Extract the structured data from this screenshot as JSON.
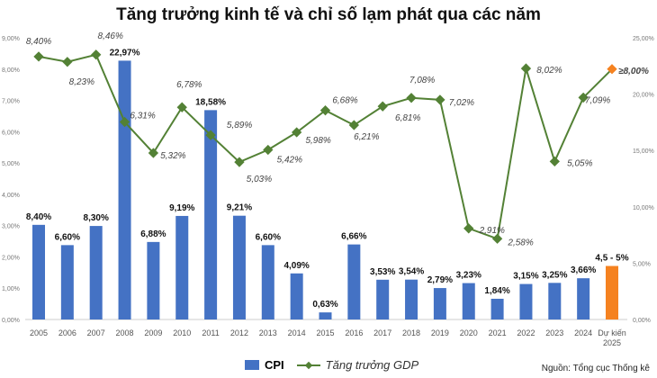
{
  "chart_data": {
    "type": "bar+line",
    "title": "Tăng trưởng kinh tế và chỉ số lạm phát qua các năm",
    "categories": [
      "2005",
      "2006",
      "2007",
      "2008",
      "2009",
      "2010",
      "2011",
      "2012",
      "2013",
      "2014",
      "2015",
      "2016",
      "2017",
      "2018",
      "2019",
      "2020",
      "2021",
      "2022",
      "2023",
      "2024",
      "Dự kiến 2025"
    ],
    "series": [
      {
        "name": "CPI",
        "type": "bar",
        "axis": "right",
        "color": "#4472C4",
        "forecast_color": "#F58220",
        "values": [
          8.4,
          6.6,
          8.3,
          22.97,
          6.88,
          9.19,
          18.58,
          9.21,
          6.6,
          4.09,
          0.63,
          6.66,
          3.53,
          3.54,
          2.79,
          3.23,
          1.84,
          3.15,
          3.25,
          3.66,
          4.75
        ],
        "labels": [
          "8,40%",
          "6,60%",
          "8,30%",
          "22,97%",
          "6,88%",
          "9,19%",
          "18,58%",
          "9,21%",
          "6,60%",
          "4,09%",
          "0,63%",
          "6,66%",
          "3,53%",
          "3,54%",
          "2,79%",
          "3,23%",
          "1,84%",
          "3,15%",
          "3,25%",
          "3,66%",
          "4,5 - 5%"
        ]
      },
      {
        "name": "Tăng trưởng GDP",
        "type": "line",
        "axis": "left",
        "color": "#538135",
        "forecast_color": "#F58220",
        "values": [
          8.4,
          8.23,
          8.46,
          6.31,
          5.32,
          6.78,
          5.89,
          5.03,
          5.42,
          5.98,
          6.68,
          6.21,
          6.81,
          7.08,
          7.02,
          2.91,
          2.58,
          8.02,
          5.05,
          7.09,
          8.0
        ],
        "labels": [
          "8,40%",
          "8,23%",
          "8,46%",
          "6,31%",
          "5,32%",
          "6,78%",
          "5,89%",
          "5,03%",
          "5,42%",
          "5,98%",
          "6,68%",
          "6,21%",
          "6,81%",
          "7,08%",
          "7,02%",
          "2,91%",
          "2,58%",
          "8,02%",
          "5,05%",
          "7,09%",
          "≥8,00%"
        ]
      }
    ],
    "left_axis": {
      "ylim": [
        0,
        9
      ],
      "ticks": [
        "0,00%",
        "1,00%",
        "2,00%",
        "3,00%",
        "4,00%",
        "5,00%",
        "6,00%",
        "7,00%",
        "8,00%",
        "9,00%"
      ]
    },
    "right_axis": {
      "ylim": [
        0,
        25
      ],
      "ticks": [
        "0,00%",
        "5,00%",
        "10,00%",
        "15,00%",
        "20,00%",
        "25,00%"
      ]
    },
    "legend_placement": "bottom",
    "grid": false,
    "source": "Nguồn: Tổng cục Thống kê"
  }
}
